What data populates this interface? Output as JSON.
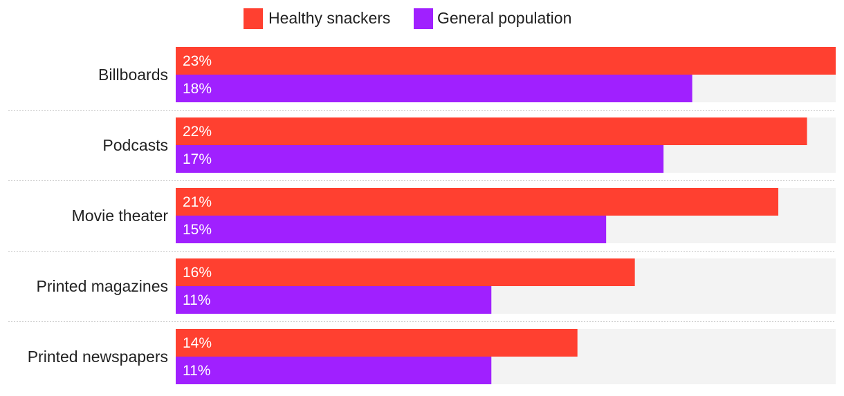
{
  "chart_data": {
    "type": "bar",
    "orientation": "horizontal",
    "title": "",
    "xlabel": "",
    "ylabel": "",
    "categories": [
      "Billboards",
      "Podcasts",
      "Movie theater",
      "Printed magazines",
      "Printed newspapers"
    ],
    "series": [
      {
        "name": "Healthy snackers",
        "color": "#ff4030",
        "values": [
          23,
          22,
          21,
          16,
          14
        ],
        "labels": [
          "23%",
          "22%",
          "21%",
          "16%",
          "14%"
        ]
      },
      {
        "name": "General population",
        "color": "#a020ff",
        "values": [
          18,
          17,
          15,
          11,
          11
        ],
        "labels": [
          "18%",
          "17%",
          "15%",
          "11%",
          "11%"
        ]
      }
    ],
    "xlim": [
      0,
      23
    ],
    "grid": false,
    "legend_position": "top-center",
    "track_color": "#f3f3f3"
  }
}
